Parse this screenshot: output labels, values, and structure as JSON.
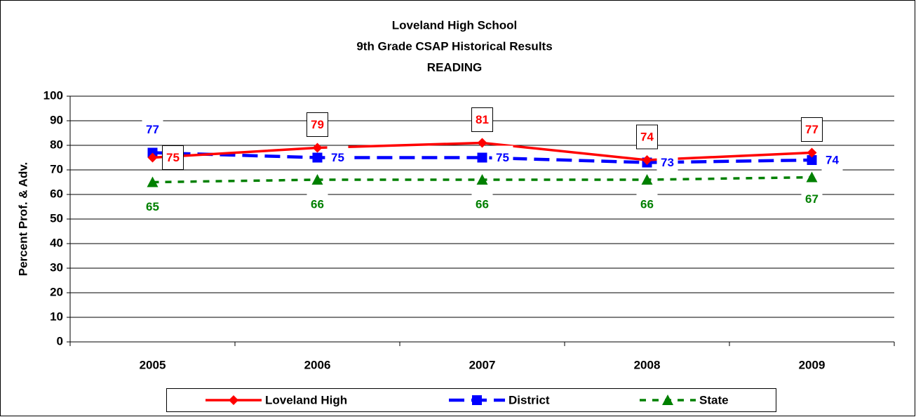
{
  "chart_data": {
    "type": "line",
    "title_lines": [
      "Loveland High School",
      "9th Grade CSAP Historical Results",
      "READING"
    ],
    "y_label": "Percent Prof. & Adv.",
    "categories": [
      "2005",
      "2006",
      "2007",
      "2008",
      "2009"
    ],
    "series": [
      {
        "name": "Loveland High",
        "color": "#ff0000",
        "marker": "diamond",
        "dash": "solid",
        "values": [
          75,
          79,
          81,
          74,
          77
        ]
      },
      {
        "name": "District",
        "color": "#0000ff",
        "marker": "square",
        "dash": "dash",
        "values": [
          77,
          75,
          75,
          73,
          74
        ]
      },
      {
        "name": "State",
        "color": "#008000",
        "marker": "triangle",
        "dash": "dot",
        "values": [
          65,
          66,
          66,
          66,
          67
        ]
      }
    ],
    "ylim": [
      0,
      100
    ],
    "yticks": [
      0,
      10,
      20,
      30,
      40,
      50,
      60,
      70,
      80,
      90,
      100
    ],
    "grid": true,
    "legend": "bottom"
  }
}
